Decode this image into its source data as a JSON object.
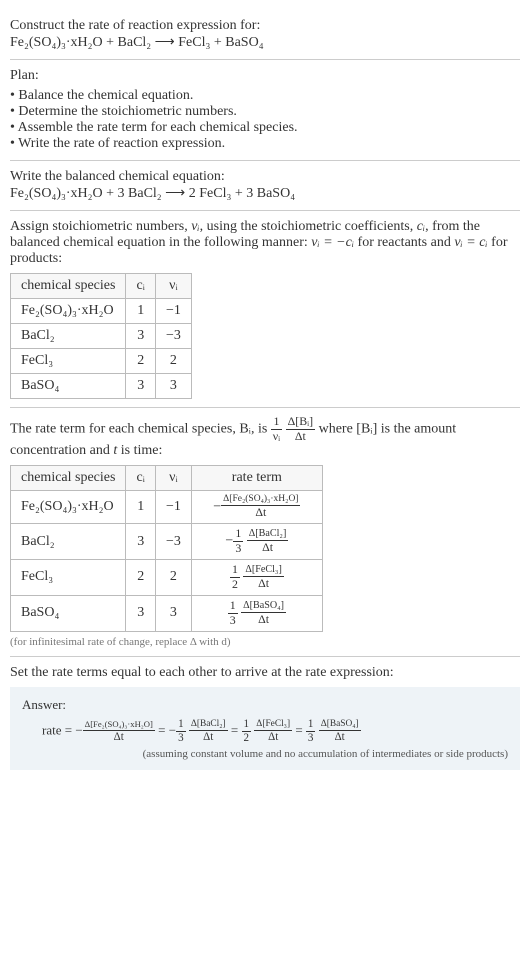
{
  "intro": {
    "line1": "Construct the rate of reaction expression for:",
    "equation": "Fe₂(SO₄)₃·xH₂O + BaCl₂  ⟶  FeCl₃ + BaSO₄"
  },
  "plan": {
    "heading": "Plan:",
    "items": [
      "Balance the chemical equation.",
      "Determine the stoichiometric numbers.",
      "Assemble the rate term for each chemical species.",
      "Write the rate of reaction expression."
    ]
  },
  "balanced": {
    "heading": "Write the balanced chemical equation:",
    "equation": "Fe₂(SO₄)₃·xH₂O + 3 BaCl₂  ⟶  2 FeCl₃ + 3 BaSO₄"
  },
  "assign": {
    "text_a": "Assign stoichiometric numbers, ",
    "nu_i": "νᵢ",
    "text_b": ", using the stoichiometric coefficients, ",
    "c_i": "cᵢ",
    "text_c": ", from the balanced chemical equation in the following manner: ",
    "eq1": "νᵢ = −cᵢ",
    "text_d": " for reactants and ",
    "eq2": "νᵢ = cᵢ",
    "text_e": " for products:",
    "table": {
      "headers": [
        "chemical species",
        "cᵢ",
        "νᵢ"
      ],
      "rows": [
        [
          "Fe₂(SO₄)₃·xH₂O",
          "1",
          "−1"
        ],
        [
          "BaCl₂",
          "3",
          "−3"
        ],
        [
          "FeCl₃",
          "2",
          "2"
        ],
        [
          "BaSO₄",
          "3",
          "3"
        ]
      ]
    }
  },
  "rateterm": {
    "text_a": "The rate term for each chemical species, Bᵢ, is ",
    "text_b": " where [Bᵢ] is the amount concentration and ",
    "t": "t",
    "text_c": " is time:",
    "frac1_num": "1",
    "frac1_den": "νᵢ",
    "frac2_num": "Δ[Bᵢ]",
    "frac2_den": "Δt",
    "table": {
      "headers": [
        "chemical species",
        "cᵢ",
        "νᵢ",
        "rate term"
      ],
      "rows": [
        {
          "sp": "Fe₂(SO₄)₃·xH₂O",
          "c": "1",
          "nu": "−1",
          "pre": "−",
          "f1n": "",
          "f1d": "",
          "f2n": "Δ[Fe₂(SO₄)₃·xH₂O]",
          "f2d": "Δt"
        },
        {
          "sp": "BaCl₂",
          "c": "3",
          "nu": "−3",
          "pre": "−",
          "f1n": "1",
          "f1d": "3",
          "f2n": "Δ[BaCl₂]",
          "f2d": "Δt"
        },
        {
          "sp": "FeCl₃",
          "c": "2",
          "nu": "2",
          "pre": "",
          "f1n": "1",
          "f1d": "2",
          "f2n": "Δ[FeCl₃]",
          "f2d": "Δt"
        },
        {
          "sp": "BaSO₄",
          "c": "3",
          "nu": "3",
          "pre": "",
          "f1n": "1",
          "f1d": "3",
          "f2n": "Δ[BaSO₄]",
          "f2d": "Δt"
        }
      ]
    },
    "note": "(for infinitesimal rate of change, replace Δ with d)"
  },
  "conclusion": {
    "text": "Set the rate terms equal to each other to arrive at the rate expression:"
  },
  "answer": {
    "label": "Answer:",
    "prefix": "rate = −",
    "t1_num": "Δ[Fe₂(SO₄)₃·xH₂O]",
    "t1_den": "Δt",
    "eq1": " = −",
    "t2a_num": "1",
    "t2a_den": "3",
    "t2b_num": "Δ[BaCl₂]",
    "t2b_den": "Δt",
    "eq2": " = ",
    "t3a_num": "1",
    "t3a_den": "2",
    "t3b_num": "Δ[FeCl₃]",
    "t3b_den": "Δt",
    "eq3": " = ",
    "t4a_num": "1",
    "t4a_den": "3",
    "t4b_num": "Δ[BaSO₄]",
    "t4b_den": "Δt",
    "note": "(assuming constant volume and no accumulation of intermediates or side products)"
  }
}
